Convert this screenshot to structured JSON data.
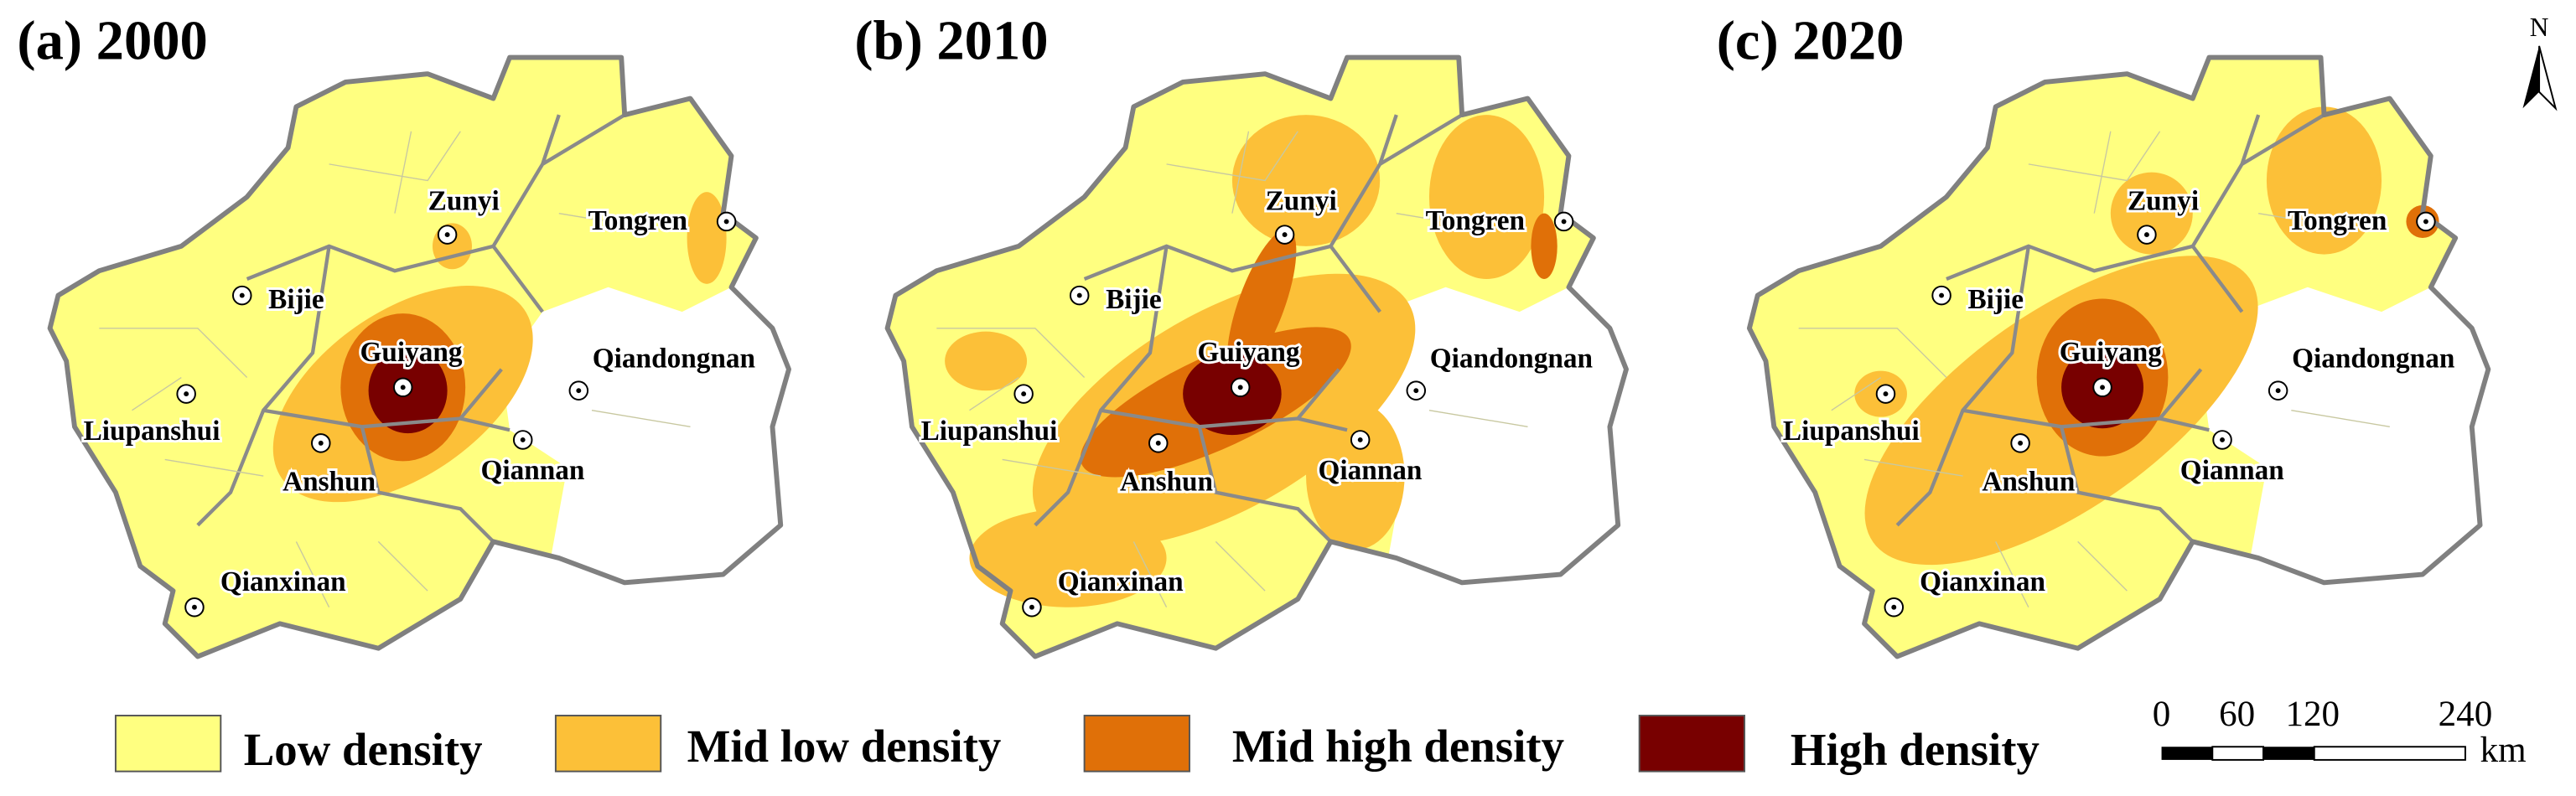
{
  "panels": [
    {
      "title": "(a) 2000",
      "cities": [
        "Zunyi",
        "Tongren",
        "Bijie",
        "Guiyang",
        "Qiandongnan",
        "Liupanshui",
        "Anshun",
        "Qiannan",
        "Qianxinan"
      ]
    },
    {
      "title": "(b) 2010",
      "cities": [
        "Zunyi",
        "Tongren",
        "Bijie",
        "Guiyang",
        "Qiandongnan",
        "Liupanshui",
        "Anshun",
        "Qiannan",
        "Qianxinan"
      ]
    },
    {
      "title": "(c) 2020",
      "cities": [
        "Zunyi",
        "Tongren",
        "Bijie",
        "Guiyang",
        "Qiandongnan",
        "Liupanshui",
        "Anshun",
        "Qiannan",
        "Qianxinan"
      ]
    }
  ],
  "legend": [
    {
      "label": "Low density",
      "color": "#ffff80"
    },
    {
      "label": "Mid low density",
      "color": "#fcc038"
    },
    {
      "label": "Mid high density",
      "color": "#e07008"
    },
    {
      "label": "High density",
      "color": "#780000"
    }
  ],
  "scale_bar": {
    "ticks": [
      "0",
      "60",
      "120",
      "240"
    ],
    "unit": "km"
  },
  "north": "N"
}
